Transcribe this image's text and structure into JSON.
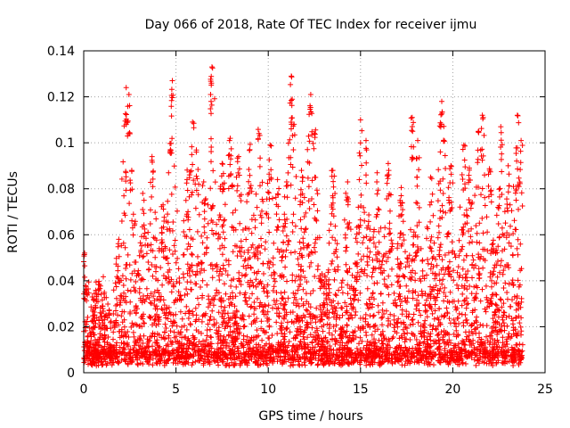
{
  "chart_data": {
    "type": "scatter",
    "title": "Day 066 of 2018, Rate Of TEC Index for receiver ijmu",
    "xlabel": "GPS time / hours",
    "ylabel": "ROTI / TECUs",
    "xlim": [
      0,
      25
    ],
    "ylim": [
      0,
      0.14
    ],
    "xticks": [
      0,
      5,
      10,
      15,
      20,
      25
    ],
    "xtick_labels": [
      "0",
      "5",
      "10",
      "15",
      "20",
      "25"
    ],
    "yticks": [
      0,
      0.02,
      0.04,
      0.06,
      0.08,
      0.1,
      0.12,
      0.14
    ],
    "ytick_labels": [
      "0",
      "0.02",
      "0.04",
      "0.06",
      "0.08",
      "0.1",
      "0.12",
      "0.14"
    ],
    "grid": true,
    "marker": "+",
    "marker_color": "#ff0000",
    "data_range_x": [
      0,
      23.8
    ],
    "series": [
      {
        "name": "ROTI",
        "peaks": [
          [
            0.05,
            0.052
          ],
          [
            1.9,
            0.058
          ],
          [
            2.3,
            0.124
          ],
          [
            2.45,
            0.121
          ],
          [
            2.6,
            0.088
          ],
          [
            3.2,
            0.078
          ],
          [
            3.7,
            0.094
          ],
          [
            4.3,
            0.073
          ],
          [
            4.7,
            0.097
          ],
          [
            4.8,
            0.127
          ],
          [
            5.6,
            0.084
          ],
          [
            5.9,
            0.109
          ],
          [
            6.1,
            0.096
          ],
          [
            6.5,
            0.083
          ],
          [
            6.9,
            0.118
          ],
          [
            6.95,
            0.133
          ],
          [
            7.5,
            0.091
          ],
          [
            7.9,
            0.101
          ],
          [
            8.4,
            0.094
          ],
          [
            9.0,
            0.097
          ],
          [
            9.5,
            0.104
          ],
          [
            10.1,
            0.099
          ],
          [
            10.5,
            0.084
          ],
          [
            11.0,
            0.083
          ],
          [
            11.25,
            0.129
          ],
          [
            11.3,
            0.119
          ],
          [
            11.8,
            0.088
          ],
          [
            12.3,
            0.121
          ],
          [
            12.5,
            0.104
          ],
          [
            13.5,
            0.088
          ],
          [
            14.3,
            0.083
          ],
          [
            15.0,
            0.11
          ],
          [
            15.3,
            0.101
          ],
          [
            15.9,
            0.087
          ],
          [
            16.5,
            0.091
          ],
          [
            17.2,
            0.077
          ],
          [
            17.8,
            0.111
          ],
          [
            18.1,
            0.101
          ],
          [
            18.8,
            0.085
          ],
          [
            19.4,
            0.118
          ],
          [
            19.9,
            0.09
          ],
          [
            20.6,
            0.099
          ],
          [
            20.9,
            0.089
          ],
          [
            21.4,
            0.105
          ],
          [
            21.6,
            0.112
          ],
          [
            22.0,
            0.088
          ],
          [
            22.6,
            0.107
          ],
          [
            23.0,
            0.09
          ],
          [
            23.5,
            0.112
          ],
          [
            23.7,
            0.101
          ]
        ],
        "typical_range": [
          0.003,
          0.045
        ]
      }
    ]
  }
}
